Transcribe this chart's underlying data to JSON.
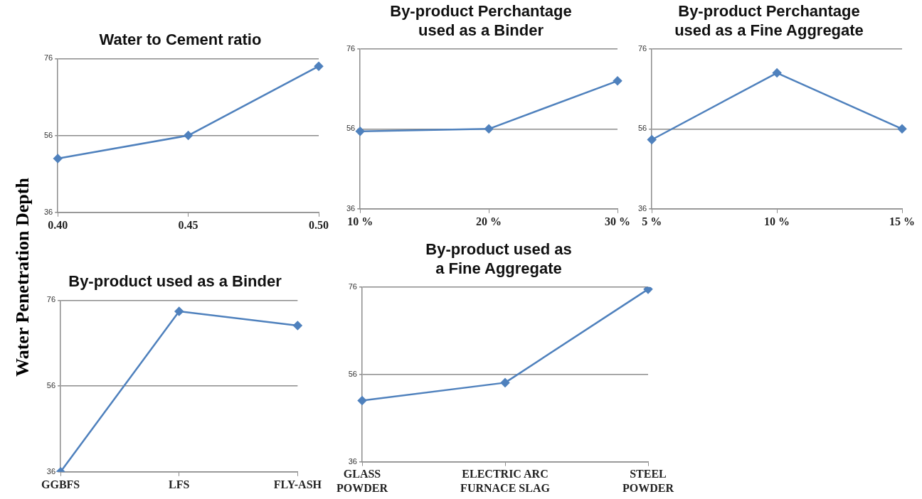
{
  "chart_data": [
    {
      "type": "line",
      "title": "Water to Cement ratio",
      "ylabel": "Water Penetration Depth",
      "categories": [
        "0.40",
        "0.45",
        "0.50"
      ],
      "values": [
        50,
        56,
        74
      ],
      "color": "#4f81bd",
      "ylim": [
        36,
        76
      ],
      "yticks": [
        36,
        56,
        76
      ],
      "grid": "y",
      "marker": "diamond"
    },
    {
      "type": "line",
      "title": "By-product Perchantage used as a Binder",
      "categories": [
        "10 %",
        "20 %",
        "30 %"
      ],
      "values": [
        55.4,
        56,
        68
      ],
      "color": "#4f81bd",
      "ylim": [
        36,
        76
      ],
      "yticks": [
        36,
        56,
        76
      ],
      "grid": "y",
      "marker": "diamond"
    },
    {
      "type": "line",
      "title": "By-product Perchantage used as a Fine Aggregate",
      "categories": [
        "5 %",
        "10 %",
        "15 %"
      ],
      "values": [
        53.3,
        70,
        56
      ],
      "color": "#4f81bd",
      "ylim": [
        36,
        76
      ],
      "yticks": [
        36,
        56,
        76
      ],
      "grid": "y",
      "marker": "diamond"
    },
    {
      "type": "line",
      "title": "By-product used as a Binder",
      "categories": [
        "GGBFS",
        "LFS",
        "FLY-ASH"
      ],
      "values": [
        36,
        73.4,
        70.1
      ],
      "color": "#4f81bd",
      "ylim": [
        36,
        76
      ],
      "yticks": [
        36,
        56,
        76
      ],
      "grid": "y",
      "marker": "diamond"
    },
    {
      "type": "line",
      "title": "By-product used as a Fine Aggregate",
      "categories": [
        "GLASS POWDER",
        "ELECTRIC ARC FURNACE SLAG",
        "STEEL POWDER"
      ],
      "values": [
        50,
        54.1,
        75.5
      ],
      "color": "#4f81bd",
      "ylim": [
        36,
        76
      ],
      "yticks": [
        36,
        56,
        76
      ],
      "grid": "y",
      "marker": "diamond"
    }
  ]
}
